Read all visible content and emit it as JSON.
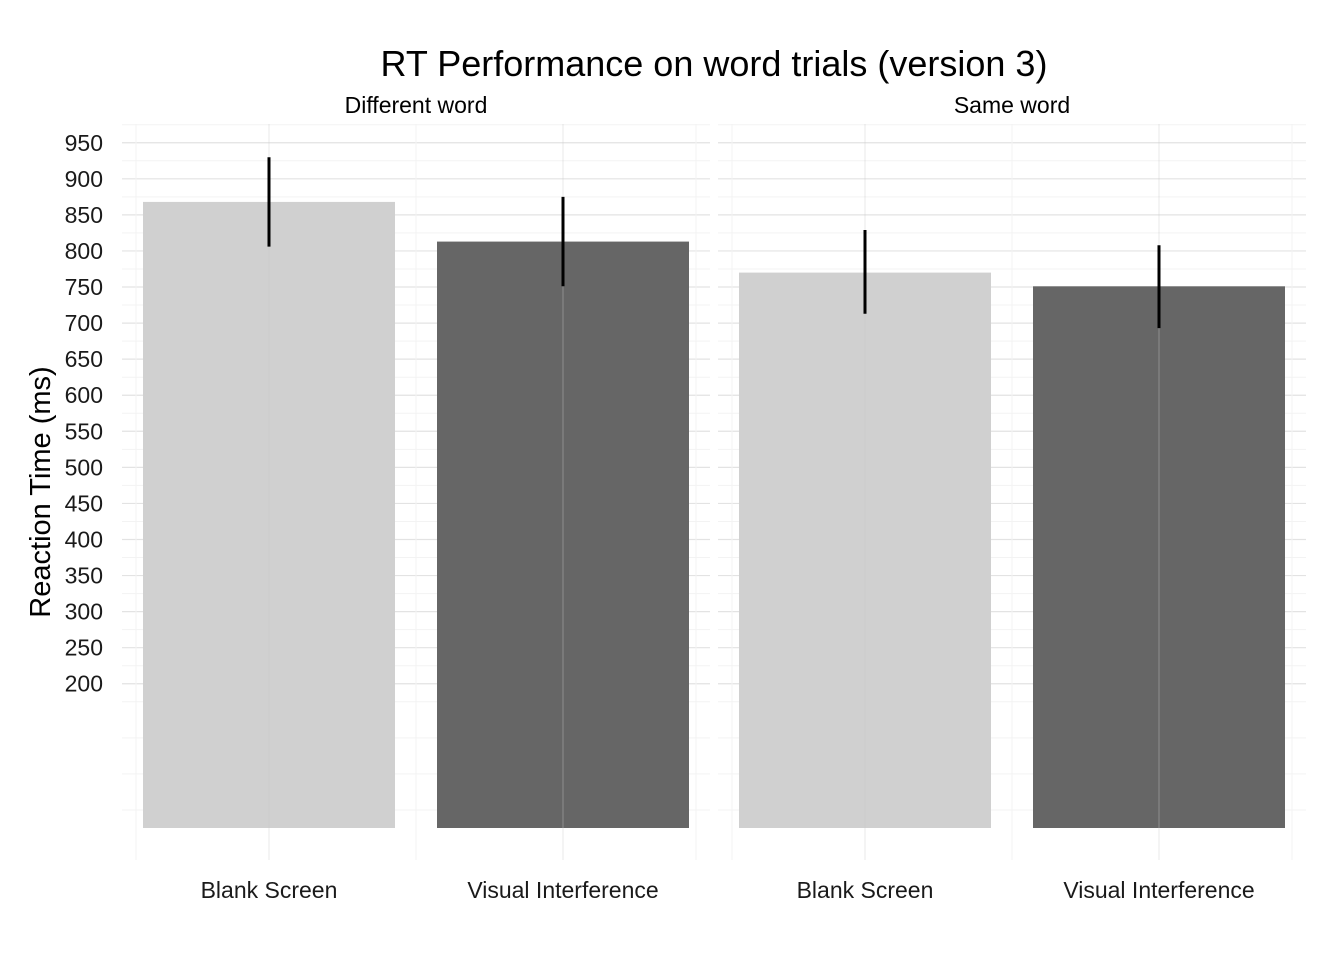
{
  "chart_data": {
    "type": "bar",
    "title": "RT Performance on word trials (version 3)",
    "xlabel": "",
    "ylabel": "Reaction Time (ms)",
    "categories": [
      "Blank Screen",
      "Visual Interference"
    ],
    "facets": [
      {
        "name": "Different word",
        "values": [
          868,
          813
        ],
        "error_low": [
          806,
          751
        ],
        "error_high": [
          930,
          875
        ]
      },
      {
        "name": "Same word",
        "values": [
          770,
          751
        ],
        "error_low": [
          713,
          693
        ],
        "error_high": [
          829,
          808
        ]
      }
    ],
    "bar_colors": [
      "#d0d0d0",
      "#666666"
    ],
    "y_ticks": [
      200,
      250,
      300,
      350,
      400,
      450,
      500,
      550,
      600,
      650,
      700,
      750,
      800,
      850,
      900,
      950
    ],
    "ylim": [
      0,
      975
    ],
    "grid": true,
    "legend": "none"
  }
}
